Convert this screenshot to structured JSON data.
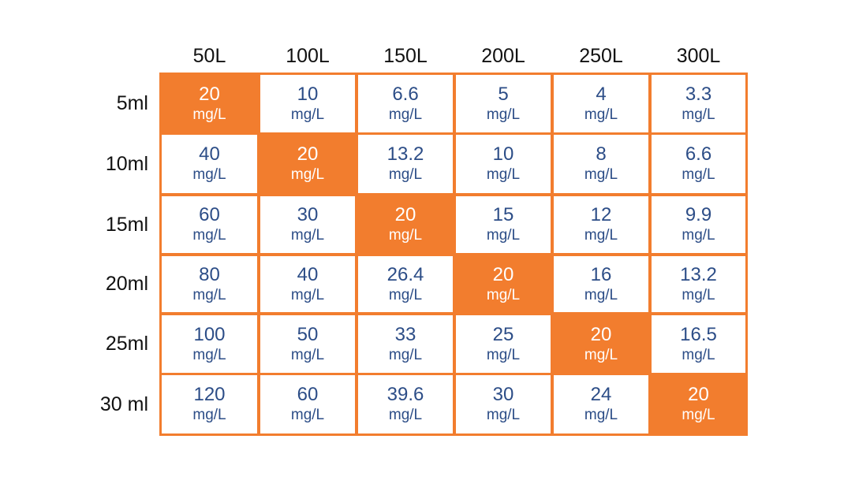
{
  "chart_data": {
    "type": "table",
    "columns": [
      "50L",
      "100L",
      "150L",
      "200L",
      "250L",
      "300L"
    ],
    "rows": [
      {
        "label": "5ml",
        "values": [
          "20",
          "10",
          "6.6",
          "5",
          "4",
          "3.3"
        ]
      },
      {
        "label": "10ml",
        "values": [
          "40",
          "20",
          "13.2",
          "10",
          "8",
          "6.6"
        ]
      },
      {
        "label": "15ml",
        "values": [
          "60",
          "30",
          "20",
          "15",
          "12",
          "9.9"
        ]
      },
      {
        "label": "20ml",
        "values": [
          "80",
          "40",
          "26.4",
          "20",
          "16",
          "13.2"
        ]
      },
      {
        "label": "25ml",
        "values": [
          "100",
          "50",
          "33",
          "25",
          "20",
          "16.5"
        ]
      },
      {
        "label": "30 ml",
        "values": [
          "120",
          "60",
          "39.6",
          "30",
          "24",
          "20"
        ]
      }
    ],
    "unit": "mg/L",
    "highlight": [
      [
        0,
        0
      ],
      [
        1,
        1
      ],
      [
        2,
        2
      ],
      [
        3,
        3
      ],
      [
        4,
        4
      ],
      [
        5,
        5
      ]
    ],
    "colors": {
      "accent": "#f27d2e",
      "value_text": "#2c4d87",
      "highlight_text": "#ffffff",
      "header_text": "#111111"
    }
  }
}
